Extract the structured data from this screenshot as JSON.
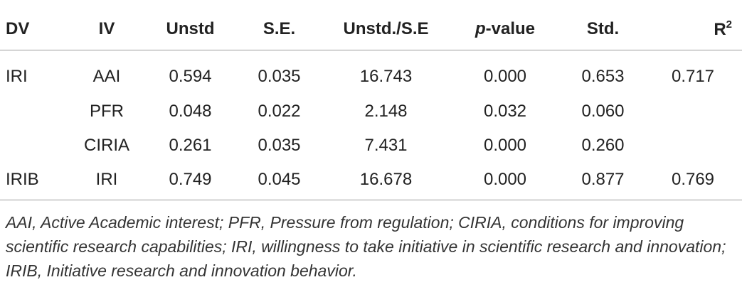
{
  "headers": {
    "dv": "DV",
    "iv": "IV",
    "unstd": "Unstd",
    "se": "S.E.",
    "unstd_se": "Unstd./S.E",
    "p_value_italic": "p",
    "p_value_rest": "-value",
    "std": "Std.",
    "r2_base": "R",
    "r2_sup": "2"
  },
  "rows": [
    {
      "dv": "IRI",
      "iv": "AAI",
      "unstd": "0.594",
      "se": "0.035",
      "unstd_se": "16.743",
      "p": "0.000",
      "std": "0.653",
      "r2": "0.717"
    },
    {
      "dv": "",
      "iv": "PFR",
      "unstd": "0.048",
      "se": "0.022",
      "unstd_se": "2.148",
      "p": "0.032",
      "std": "0.060",
      "r2": ""
    },
    {
      "dv": "",
      "iv": "CIRIA",
      "unstd": "0.261",
      "se": "0.035",
      "unstd_se": "7.431",
      "p": "0.000",
      "std": "0.260",
      "r2": ""
    },
    {
      "dv": "IRIB",
      "iv": "IRI",
      "unstd": "0.749",
      "se": "0.045",
      "unstd_se": "16.678",
      "p": "0.000",
      "std": "0.877",
      "r2": "0.769"
    }
  ],
  "footnote": "AAI, Active Academic interest; PFR, Pressure from regulation; CIRIA, conditions for improving scientific research capabilities; IRI, willingness to take initiative in scientific research and innovation; IRIB, Initiative research and innovation behavior."
}
